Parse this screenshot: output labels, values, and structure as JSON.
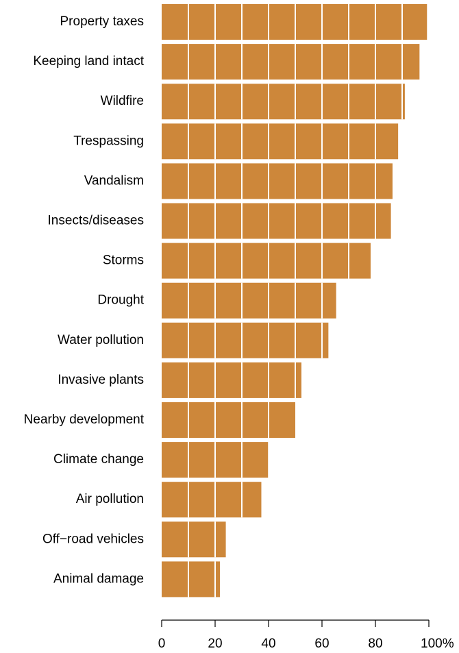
{
  "chart_data": {
    "type": "bar",
    "orientation": "horizontal",
    "categories": [
      "Property taxes",
      "Keeping land intact",
      "Wildfire",
      "Trespassing",
      "Vandalism",
      "Insects/diseases",
      "Storms",
      "Drought",
      "Water pollution",
      "Invasive plants",
      "Nearby development",
      "Climate change",
      "Air pollution",
      "Off−road vehicles",
      "Animal damage"
    ],
    "values": [
      99.3,
      96.5,
      91.0,
      88.5,
      86.4,
      85.8,
      78.2,
      65.3,
      62.4,
      52.3,
      50.0,
      39.8,
      37.3,
      24.0,
      21.8
    ],
    "xlim": [
      0,
      100
    ],
    "xticks": [
      0,
      20,
      40,
      60,
      80,
      100
    ],
    "xtick_labels": [
      "0",
      "20",
      "40",
      "60",
      "80",
      "100%"
    ],
    "bar_color": "#cd873a",
    "grid_color": "#ffffff",
    "grid": "white vertical lines every 10 units drawn over bars",
    "title": "",
    "xlabel": "",
    "ylabel": ""
  }
}
